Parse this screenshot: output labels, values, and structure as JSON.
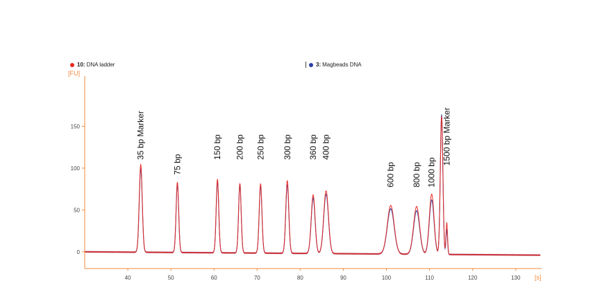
{
  "legend": [
    {
      "num": "10:",
      "label": "DNA ladder",
      "color": "#e8281e"
    },
    {
      "num": "3:",
      "label": "Magbeads DNA",
      "color": "#2b3fa8"
    }
  ],
  "chart_data": {
    "type": "line",
    "title": "",
    "ylabel": "[FU]",
    "xlabel": "[s]",
    "xlim": [
      30,
      136
    ],
    "ylim": [
      -20,
      205
    ],
    "xticks": [
      40,
      50,
      60,
      70,
      80,
      90,
      100,
      110,
      120,
      130
    ],
    "yticks": [
      0,
      50,
      100,
      150
    ],
    "grid": false,
    "legend_position": "top",
    "colors": {
      "axis": "#f08a3c",
      "ladder": "#e8281e",
      "sample": "#2b3fa8"
    },
    "series": [
      {
        "name": "DNA ladder",
        "color": "#e8281e",
        "baseline": [
          [
            30,
            0
          ],
          [
            136,
            -4
          ]
        ],
        "peaks": [
          {
            "x": 43.0,
            "y": 105,
            "w": 0.35
          },
          {
            "x": 51.5,
            "y": 84,
            "w": 0.3
          },
          {
            "x": 60.8,
            "y": 88,
            "w": 0.3
          },
          {
            "x": 66.0,
            "y": 83,
            "w": 0.3
          },
          {
            "x": 70.8,
            "y": 83,
            "w": 0.32
          },
          {
            "x": 77.0,
            "y": 87,
            "w": 0.35
          },
          {
            "x": 83.0,
            "y": 70,
            "w": 0.45
          },
          {
            "x": 86.0,
            "y": 75,
            "w": 0.55
          },
          {
            "x": 101.0,
            "y": 58,
            "w": 0.8
          },
          {
            "x": 107.0,
            "y": 57,
            "w": 0.7
          },
          {
            "x": 110.5,
            "y": 72,
            "w": 0.55
          },
          {
            "x": 112.8,
            "y": 165,
            "w": 0.3
          },
          {
            "x": 114.0,
            "y": 38,
            "w": 0.18
          }
        ]
      },
      {
        "name": "Magbeads DNA",
        "color": "#2b3fa8",
        "baseline": [
          [
            30,
            0
          ],
          [
            136,
            -4
          ]
        ],
        "peaks": [
          {
            "x": 43.0,
            "y": 100,
            "w": 0.35
          },
          {
            "x": 51.5,
            "y": 82,
            "w": 0.3
          },
          {
            "x": 60.8,
            "y": 85,
            "w": 0.3
          },
          {
            "x": 66.0,
            "y": 82,
            "w": 0.3
          },
          {
            "x": 70.8,
            "y": 80,
            "w": 0.32
          },
          {
            "x": 77.0,
            "y": 82,
            "w": 0.35
          },
          {
            "x": 83.0,
            "y": 66,
            "w": 0.45
          },
          {
            "x": 86.0,
            "y": 71,
            "w": 0.55
          },
          {
            "x": 101.0,
            "y": 54,
            "w": 0.8
          },
          {
            "x": 107.0,
            "y": 52,
            "w": 0.7
          },
          {
            "x": 110.5,
            "y": 65,
            "w": 0.55
          },
          {
            "x": 112.8,
            "y": 167,
            "w": 0.3
          },
          {
            "x": 114.0,
            "y": 30,
            "w": 0.18
          }
        ]
      }
    ],
    "annotations": [
      {
        "text": "35 bp Marker",
        "x": 43.0,
        "y": 110
      },
      {
        "text": "75 bp",
        "x": 51.5,
        "y": 92
      },
      {
        "text": "150 bp",
        "x": 60.8,
        "y": 110
      },
      {
        "text": "200 bp",
        "x": 66.0,
        "y": 110
      },
      {
        "text": "250 bp",
        "x": 70.8,
        "y": 110
      },
      {
        "text": "300 bp",
        "x": 77.0,
        "y": 110
      },
      {
        "text": "360 bp",
        "x": 83.0,
        "y": 110
      },
      {
        "text": "400 bp",
        "x": 86.0,
        "y": 110
      },
      {
        "text": "600 bp",
        "x": 101.0,
        "y": 77
      },
      {
        "text": "800 bp",
        "x": 107.0,
        "y": 77
      },
      {
        "text": "1000 bp",
        "x": 110.5,
        "y": 77
      },
      {
        "text": "1500 bp Marker",
        "x": 114.0,
        "y": 103
      }
    ]
  }
}
